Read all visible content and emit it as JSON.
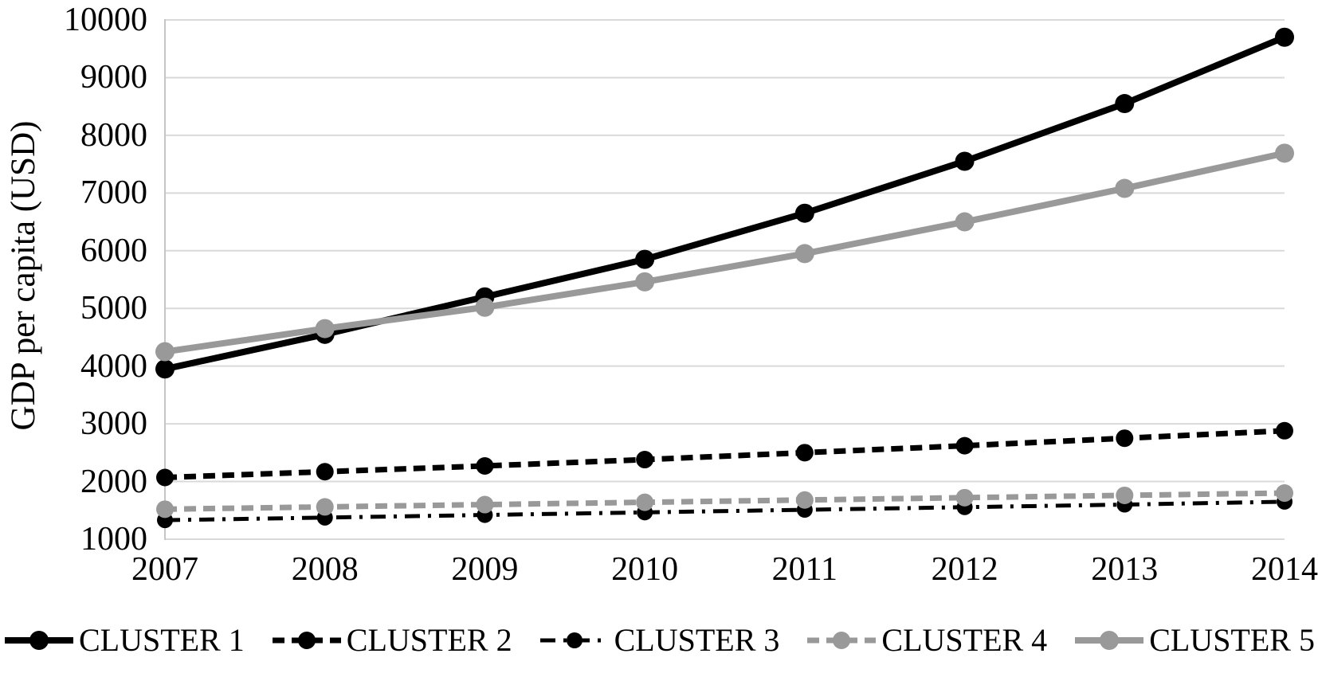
{
  "chart_data": {
    "type": "line",
    "title": "",
    "xlabel": "",
    "ylabel": "GDP per capita (USD)",
    "x": [
      2007,
      2008,
      2009,
      2010,
      2011,
      2012,
      2013,
      2014
    ],
    "y_ticks": [
      1000,
      2000,
      3000,
      4000,
      5000,
      6000,
      7000,
      8000,
      9000,
      10000
    ],
    "ylim": [
      1000,
      10000
    ],
    "grid": true,
    "legend_position": "bottom",
    "series": [
      {
        "name": "CLUSTER 1",
        "color": "#000000",
        "style": "solid",
        "line_width": 8,
        "marker": "circle",
        "marker_radius": 12,
        "values": [
          3950,
          4550,
          5200,
          5850,
          6650,
          7550,
          8550,
          9700
        ]
      },
      {
        "name": "CLUSTER 2",
        "color": "#000000",
        "style": "dashed",
        "line_width": 7,
        "marker": "circle",
        "marker_radius": 11,
        "values": [
          2070,
          2170,
          2270,
          2380,
          2500,
          2620,
          2750,
          2880
        ]
      },
      {
        "name": "CLUSTER 3",
        "color": "#000000",
        "style": "dash-dot",
        "line_width": 5,
        "marker": "circle",
        "marker_radius": 10,
        "values": [
          1330,
          1375,
          1420,
          1465,
          1510,
          1555,
          1600,
          1650
        ]
      },
      {
        "name": "CLUSTER 4",
        "color": "#999999",
        "style": "dashed",
        "line_width": 7,
        "marker": "circle",
        "marker_radius": 11,
        "values": [
          1520,
          1560,
          1600,
          1640,
          1680,
          1720,
          1760,
          1800
        ]
      },
      {
        "name": "CLUSTER 5",
        "color": "#999999",
        "style": "solid",
        "line_width": 8,
        "marker": "circle",
        "marker_radius": 12,
        "values": [
          4250,
          4650,
          5020,
          5460,
          5950,
          6500,
          7080,
          7690
        ]
      }
    ]
  },
  "colors": {
    "background": "#ffffff",
    "gridline": "#d9d9d9",
    "axis": "#c6c6c6",
    "text": "#000000"
  }
}
